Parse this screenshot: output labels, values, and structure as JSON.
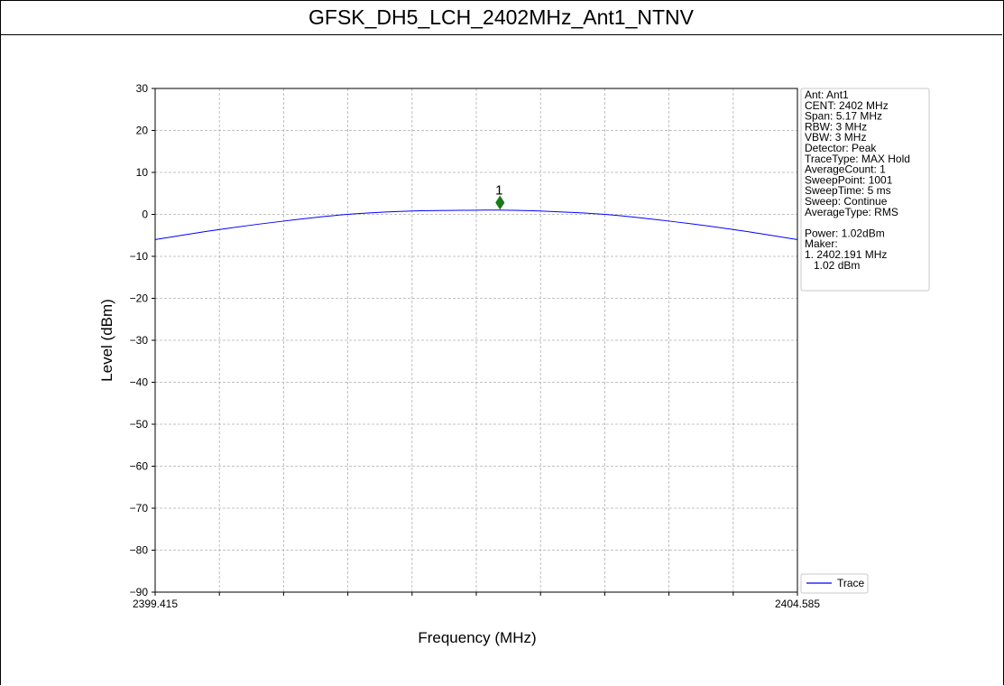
{
  "page_title": "GFSK_DH5_LCH_2402MHz_Ant1_NTNV",
  "chart_data": {
    "type": "line",
    "title": "GFSK_DH5_LCH_2402MHz_Ant1_NTNV",
    "xlabel": "Frequency (MHz)",
    "ylabel": "Level (dBm)",
    "xlim": [
      2399.415,
      2404.585
    ],
    "ylim": [
      -90,
      30
    ],
    "x_tick_labels": [
      "2399.415",
      "2404.585"
    ],
    "y_ticks": [
      30,
      20,
      10,
      0,
      -10,
      -20,
      -30,
      -40,
      -50,
      -60,
      -70,
      -80,
      -90
    ],
    "y_tick_labels": [
      "30",
      "20",
      "10",
      "0",
      "−10",
      "−20",
      "−30",
      "−40",
      "−50",
      "−60",
      "−70",
      "−80",
      "−90"
    ],
    "grid": true,
    "legend_placement": "bottom-right",
    "series": [
      {
        "name": "Trace",
        "color": "#0000ff",
        "x": [
          2399.415,
          2399.932,
          2400.449,
          2400.966,
          2401.483,
          2402.0,
          2402.191,
          2402.517,
          2403.034,
          2403.551,
          2404.068,
          2404.585
        ],
        "y": [
          -6.0,
          -3.6,
          -1.6,
          0.0,
          0.8,
          1.0,
          1.02,
          0.8,
          0.0,
          -1.6,
          -3.6,
          -6.0
        ]
      }
    ],
    "marker": {
      "label": "1",
      "x": 2402.191,
      "y": 2.8,
      "color": "#1a7a1a"
    },
    "info_lines": [
      "Ant: Ant1",
      "CENT: 2402 MHz",
      "Span: 5.17 MHz",
      "RBW: 3 MHz",
      "VBW: 3 MHz",
      "Detector: Peak",
      "TraceType: MAX Hold",
      "AverageCount: 1",
      "SweepPoint: 1001",
      "SweepTime: 5 ms",
      "Sweep: Continue",
      "AverageType: RMS",
      "",
      "Power: 1.02dBm",
      "Maker:",
      "1. 2402.191 MHz",
      "   1.02 dBm"
    ]
  }
}
